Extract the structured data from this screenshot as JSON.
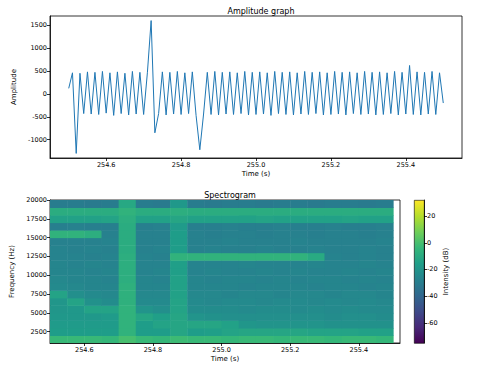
{
  "chart_data": [
    {
      "type": "line",
      "title": "Amplitude graph",
      "x_label": "Time (s)",
      "y_label": "Amplitude",
      "color": "#1f77b4",
      "grid": false,
      "xlim": [
        254.45,
        255.55
      ],
      "xticks": [
        254.6,
        254.8,
        {
          "value": 255,
          "label": "255.0"
        },
        255.2,
        255.4
      ],
      "ylim": [
        -1400,
        1700
      ],
      "yticks": [
        -1000,
        -500,
        0,
        500,
        1000,
        1500
      ],
      "x": [
        254.5,
        254.51,
        254.52,
        254.53,
        254.54,
        254.55,
        254.56,
        254.57,
        254.58,
        254.59,
        254.6,
        254.61,
        254.62,
        254.63,
        254.64,
        254.65,
        254.66,
        254.67,
        254.68,
        254.69,
        254.7,
        254.71,
        254.72,
        254.73,
        254.74,
        254.75,
        254.76,
        254.77,
        254.78,
        254.79,
        254.8,
        254.81,
        254.82,
        254.83,
        254.84,
        254.85,
        254.86,
        254.87,
        254.88,
        254.89,
        254.9,
        254.91,
        254.92,
        254.93,
        254.94,
        254.95,
        254.96,
        254.97,
        254.98,
        254.99,
        255,
        255.01,
        255.02,
        255.03,
        255.04,
        255.05,
        255.06,
        255.07,
        255.08,
        255.09,
        255.1,
        255.11,
        255.12,
        255.13,
        255.14,
        255.15,
        255.16,
        255.17,
        255.18,
        255.19,
        255.2,
        255.21,
        255.22,
        255.23,
        255.24,
        255.25,
        255.26,
        255.27,
        255.28,
        255.29,
        255.3,
        255.31,
        255.32,
        255.33,
        255.34,
        255.35,
        255.36,
        255.37,
        255.38,
        255.39,
        255.4,
        255.41,
        255.42,
        255.43,
        255.44,
        255.45,
        255.46,
        255.47,
        255.48,
        255.49,
        255.5
      ],
      "values": [
        120,
        460,
        -1300,
        450,
        -430,
        480,
        -440,
        470,
        -450,
        490,
        -420,
        460,
        -470,
        480,
        -430,
        450,
        -460,
        490,
        -440,
        470,
        -450,
        460,
        1600,
        -850,
        -430,
        480,
        -460,
        470,
        -440,
        490,
        -450,
        460,
        -430,
        480,
        -470,
        -1220,
        -440,
        470,
        -450,
        490,
        -460,
        470,
        -440,
        480,
        -450,
        460,
        -430,
        490,
        -460,
        470,
        -450,
        480,
        -440,
        460,
        -470,
        490,
        -430,
        470,
        -450,
        480,
        -460,
        460,
        -440,
        490,
        -450,
        470,
        -430,
        480,
        -460,
        460,
        -450,
        490,
        -440,
        470,
        -460,
        480,
        -430,
        460,
        -450,
        490,
        -440,
        470,
        -460,
        480,
        -450,
        460,
        -430,
        490,
        -460,
        470,
        -440,
        620,
        -450,
        480,
        -460,
        470,
        -440,
        490,
        -450,
        460,
        -200
      ]
    },
    {
      "type": "heatmap",
      "title": "Spectrogram",
      "x_label": "Time (s)",
      "y_label": "Frequency (Hz)",
      "grid": false,
      "xlim": [
        254.5,
        255.52
      ],
      "xticks": [
        254.6,
        254.8,
        {
          "value": 255,
          "label": "255.0"
        },
        255.2,
        255.4
      ],
      "ylim": [
        1000,
        20000
      ],
      "yticks": [
        2500,
        5000,
        7500,
        10000,
        12500,
        15000,
        17500,
        20000
      ],
      "x_edges": [
        254.5,
        254.55,
        254.6,
        254.65,
        254.7,
        254.75,
        254.8,
        254.85,
        254.9,
        254.95,
        255,
        255.05,
        255.1,
        255.15,
        255.2,
        255.25,
        255.3,
        255.35,
        255.4,
        255.45,
        255.5
      ],
      "y_edges": [
        1000,
        2000,
        3000,
        4000,
        5000,
        6000,
        7000,
        8000,
        9000,
        10000,
        11000,
        12000,
        13000,
        14000,
        15000,
        16000,
        17000,
        18000,
        19000,
        20000
      ],
      "cells": [
        [
          -3,
          -3,
          -3,
          -4,
          0,
          -3,
          -4,
          -2,
          -3,
          -3,
          -4,
          -3,
          -3,
          -4,
          -3,
          -3,
          -4,
          -3,
          -3,
          -4
        ],
        [
          -16,
          -16,
          -16,
          -16,
          -6,
          -16,
          -16,
          -12,
          -16,
          -15,
          -13,
          -12,
          -12,
          -12,
          -12,
          -13,
          -13,
          -13,
          -14,
          -14
        ],
        [
          -17,
          -17,
          -17,
          -17,
          -6,
          -16,
          -13,
          -12,
          -12,
          -12,
          -14,
          -19,
          -20,
          -20,
          -20,
          -20,
          -21,
          -21,
          -21,
          -21
        ],
        [
          -18,
          -18,
          -18,
          -17,
          -6,
          -12,
          -15,
          -12,
          -20,
          -21,
          -22,
          -22,
          -22,
          -22,
          -22,
          -22,
          -23,
          -22,
          -22,
          -23
        ],
        [
          -19,
          -18,
          -13,
          -13,
          -6,
          -20,
          -22,
          -13,
          -23,
          -23,
          -23,
          -24,
          -23,
          -23,
          -24,
          -23,
          -24,
          -23,
          -24,
          -24
        ],
        [
          -19,
          -13,
          -21,
          -23,
          -7,
          -24,
          -24,
          -13,
          -24,
          -25,
          -24,
          -24,
          -25,
          -24,
          -24,
          -25,
          -24,
          -25,
          -24,
          -25
        ],
        [
          -13,
          -22,
          -24,
          -25,
          -7,
          -25,
          -25,
          -14,
          -25,
          -25,
          -26,
          -25,
          -25,
          -26,
          -25,
          -25,
          -26,
          -25,
          -25,
          -26
        ],
        [
          -24,
          -25,
          -26,
          -26,
          -7,
          -26,
          -26,
          -14,
          -26,
          -26,
          -26,
          -27,
          -26,
          -26,
          -26,
          -27,
          -26,
          -26,
          -27,
          -26
        ],
        [
          -25,
          -26,
          -26,
          -27,
          -8,
          -26,
          -27,
          -14,
          -26,
          -27,
          -26,
          -26,
          -27,
          -26,
          -27,
          -26,
          -26,
          -27,
          -26,
          -27
        ],
        [
          -26,
          -26,
          -27,
          -26,
          -8,
          -27,
          -26,
          -15,
          -27,
          -26,
          -27,
          -27,
          -26,
          -27,
          -26,
          -27,
          -27,
          -26,
          -27,
          -26
        ],
        [
          -26,
          -27,
          -26,
          -27,
          -8,
          -27,
          -27,
          -15,
          -27,
          -27,
          -27,
          -26,
          -27,
          -27,
          -27,
          -26,
          -27,
          -27,
          -26,
          -27
        ],
        [
          -27,
          -27,
          -28,
          -27,
          -8,
          -27,
          -28,
          -6,
          -6,
          -6,
          -6,
          -6,
          -6,
          -6,
          -6,
          -10,
          -27,
          -28,
          -27,
          -28
        ],
        [
          -27,
          -28,
          -27,
          -28,
          -9,
          -28,
          -27,
          -16,
          -28,
          -27,
          -28,
          -28,
          -27,
          -28,
          -28,
          -27,
          -28,
          -28,
          -27,
          -28
        ],
        [
          -28,
          -28,
          -28,
          -27,
          -9,
          -28,
          -28,
          -16,
          -28,
          -28,
          -27,
          -28,
          -28,
          -28,
          -27,
          -28,
          -28,
          -28,
          -28,
          -27
        ],
        [
          -6,
          -6,
          -8,
          -28,
          -9,
          -28,
          -28,
          -16,
          -28,
          -29,
          -28,
          -28,
          -29,
          -28,
          -28,
          -29,
          -28,
          -28,
          -29,
          -28
        ],
        [
          -29,
          -28,
          -29,
          -29,
          -9,
          -29,
          -28,
          -17,
          -29,
          -29,
          -28,
          -29,
          -29,
          -28,
          -29,
          -29,
          -28,
          -29,
          -29,
          -28
        ],
        [
          -14,
          -14,
          -14,
          -13,
          -8,
          -14,
          -14,
          -12,
          -14,
          -14,
          -14,
          -14,
          -13,
          -14,
          -14,
          -14,
          -14,
          -13,
          -14,
          -14
        ],
        [
          -9,
          -9,
          -9,
          -9,
          -6,
          -9,
          -9,
          -8,
          -9,
          -9,
          -9,
          -9,
          -9,
          -9,
          -9,
          -9,
          -9,
          -9,
          -9,
          -9
        ],
        [
          -30,
          -30,
          -31,
          -30,
          -11,
          -30,
          -31,
          -18,
          -30,
          -31,
          -30,
          -30,
          -31,
          -30,
          -30,
          -31,
          -30,
          -30,
          -31,
          -30
        ]
      ],
      "colorbar": {
        "label": "Intensity (dB)",
        "range": [
          -75,
          32
        ],
        "ticks": [
          -60,
          -40,
          -20,
          0,
          20
        ]
      }
    }
  ]
}
